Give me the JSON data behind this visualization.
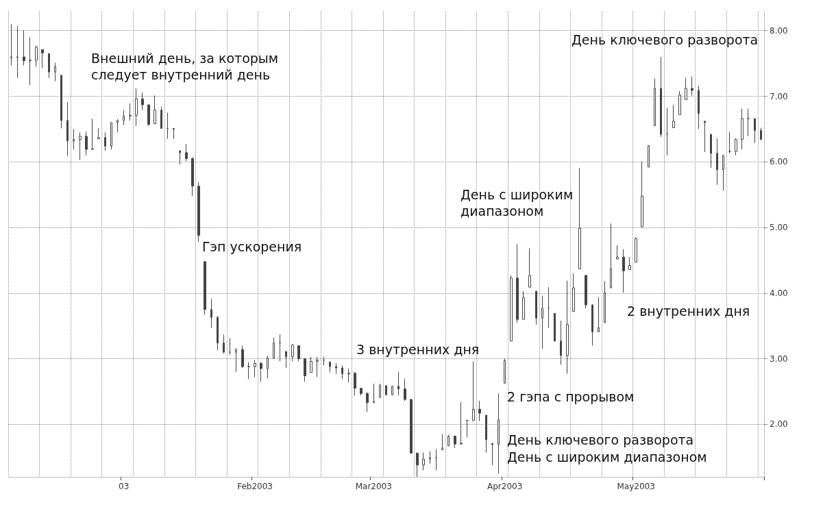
{
  "chart_data": {
    "type": "candlestick",
    "color": "#444444",
    "categories": [
      null,
      null,
      null,
      null,
      null,
      null,
      null,
      null,
      null,
      null,
      null,
      null,
      null,
      null,
      null,
      null,
      null,
      null,
      "03",
      null,
      null,
      null,
      null,
      null,
      null,
      null,
      null,
      null,
      null,
      null,
      null,
      null,
      null,
      null,
      null,
      null,
      null,
      null,
      null,
      "Feb2003",
      null,
      null,
      null,
      null,
      null,
      null,
      null,
      null,
      null,
      null,
      null,
      null,
      null,
      null,
      null,
      null,
      null,
      null,
      "Mar2003",
      null,
      null,
      null,
      null,
      null,
      null,
      null,
      null,
      null,
      null,
      null,
      null,
      null,
      null,
      null,
      null,
      null,
      null,
      null,
      null,
      "Apr2003",
      null,
      null,
      null,
      null,
      null,
      null,
      null,
      null,
      null,
      null,
      null,
      null,
      null,
      null,
      null,
      null,
      null,
      null,
      null,
      null,
      "May2003",
      null,
      null,
      null,
      null,
      null,
      null,
      null,
      null,
      null,
      null,
      null,
      null,
      null,
      null,
      null,
      null,
      null,
      null,
      null,
      null
    ],
    "ohlc": [
      [
        7.6,
        8.1,
        7.47,
        7.59
      ],
      [
        7.59,
        8.07,
        7.28,
        7.6
      ],
      [
        7.6,
        8.01,
        7.47,
        7.54
      ],
      [
        7.54,
        7.9,
        7.17,
        7.55
      ],
      [
        7.55,
        7.77,
        7.45,
        7.75
      ],
      [
        7.71,
        7.71,
        7.43,
        7.66
      ],
      [
        7.65,
        7.65,
        7.28,
        7.37
      ],
      [
        7.37,
        7.51,
        7.23,
        7.45
      ],
      [
        7.32,
        7.32,
        6.51,
        6.63
      ],
      [
        6.63,
        6.91,
        6.09,
        6.32
      ],
      [
        6.32,
        6.5,
        6.19,
        6.34
      ],
      [
        6.34,
        6.45,
        6.03,
        6.39
      ],
      [
        6.39,
        6.46,
        6.1,
        6.19
      ],
      [
        6.19,
        6.66,
        6.19,
        6.2
      ],
      [
        6.35,
        6.51,
        6.35,
        6.37
      ],
      [
        6.37,
        6.45,
        6.17,
        6.24
      ],
      [
        6.24,
        6.6,
        6.19,
        6.6
      ],
      [
        6.6,
        6.65,
        6.45,
        6.63
      ],
      [
        6.63,
        6.79,
        6.56,
        6.7
      ],
      [
        6.7,
        6.89,
        6.63,
        6.71
      ],
      [
        6.71,
        7.12,
        6.55,
        6.96
      ],
      [
        6.96,
        7.06,
        6.79,
        6.87
      ],
      [
        6.87,
        6.87,
        6.55,
        6.57
      ],
      [
        6.58,
        7.01,
        6.58,
        6.79
      ],
      [
        6.79,
        6.84,
        6.51,
        6.51
      ],
      [
        6.51,
        6.75,
        6.35,
        6.51
      ],
      [
        6.51,
        6.51,
        6.35,
        6.5
      ],
      [
        6.17,
        6.17,
        5.96,
        6.14
      ],
      [
        6.14,
        6.27,
        6.01,
        6.05
      ],
      [
        6.05,
        6.07,
        5.48,
        5.63
      ],
      [
        5.63,
        5.69,
        4.78,
        4.88
      ],
      [
        4.48,
        4.48,
        3.67,
        3.75
      ],
      [
        3.75,
        3.91,
        3.47,
        3.63
      ],
      [
        3.63,
        3.65,
        3.13,
        3.24
      ],
      [
        3.24,
        3.37,
        3.08,
        3.1
      ],
      [
        3.1,
        3.31,
        3.06,
        3.1
      ],
      [
        3.1,
        3.16,
        2.8,
        3.14
      ],
      [
        3.14,
        3.2,
        2.86,
        2.88
      ],
      [
        2.88,
        2.95,
        2.69,
        2.88
      ],
      [
        2.88,
        2.98,
        2.72,
        2.93
      ],
      [
        2.93,
        2.95,
        2.65,
        2.85
      ],
      [
        2.85,
        3.05,
        2.7,
        3.01
      ],
      [
        3.01,
        3.32,
        3.0,
        3.24
      ],
      [
        3.24,
        3.37,
        2.96,
        3.24
      ],
      [
        3.11,
        3.11,
        2.86,
        3.03
      ],
      [
        3.03,
        3.22,
        2.96,
        3.21
      ],
      [
        3.2,
        3.2,
        2.96,
        3.0
      ],
      [
        3.0,
        3.01,
        2.65,
        2.74
      ],
      [
        2.79,
        3.03,
        2.79,
        2.96
      ],
      [
        2.96,
        3.03,
        2.72,
        2.98
      ],
      [
        2.98,
        3.03,
        2.9,
        2.98
      ],
      [
        2.95,
        2.95,
        2.79,
        2.88
      ],
      [
        2.88,
        2.93,
        2.77,
        2.86
      ],
      [
        2.86,
        2.9,
        2.69,
        2.77
      ],
      [
        2.77,
        2.85,
        2.64,
        2.78
      ],
      [
        2.78,
        2.8,
        2.44,
        2.55
      ],
      [
        2.55,
        2.55,
        2.44,
        2.47
      ],
      [
        2.47,
        2.49,
        2.19,
        2.33
      ],
      [
        2.33,
        2.62,
        2.33,
        2.35
      ],
      [
        2.41,
        2.62,
        2.41,
        2.59
      ],
      [
        2.59,
        2.59,
        2.44,
        2.45
      ],
      [
        2.45,
        2.59,
        2.44,
        2.58
      ],
      [
        2.58,
        2.8,
        2.44,
        2.54
      ],
      [
        2.54,
        2.69,
        2.36,
        2.38
      ],
      [
        2.38,
        2.38,
        1.56,
        1.56
      ],
      [
        1.56,
        1.57,
        1.2,
        1.38
      ],
      [
        1.38,
        1.57,
        1.3,
        1.47
      ],
      [
        1.47,
        1.59,
        1.4,
        1.49
      ],
      [
        1.49,
        1.62,
        1.3,
        1.49
      ],
      [
        1.61,
        1.85,
        1.61,
        1.64
      ],
      [
        1.67,
        1.84,
        1.67,
        1.82
      ],
      [
        1.82,
        1.82,
        1.64,
        1.7
      ],
      [
        1.71,
        2.34,
        1.7,
        1.7
      ],
      [
        2.06,
        2.07,
        1.8,
        2.06
      ],
      [
        2.06,
        2.96,
        2.05,
        2.23
      ],
      [
        2.23,
        2.36,
        2.05,
        2.17
      ],
      [
        2.14,
        2.14,
        1.57,
        1.77
      ],
      [
        1.71,
        1.71,
        1.38,
        1.69
      ],
      [
        1.69,
        2.47,
        1.25,
        2.07
      ],
      [
        2.63,
        3.0,
        2.62,
        2.97
      ],
      [
        3.27,
        4.27,
        3.27,
        4.23
      ],
      [
        4.23,
        4.75,
        3.55,
        3.6
      ],
      [
        3.6,
        4.03,
        3.6,
        3.93
      ],
      [
        4.09,
        4.68,
        4.09,
        4.27
      ],
      [
        4.03,
        4.03,
        3.52,
        3.62
      ],
      [
        3.62,
        3.96,
        3.15,
        3.77
      ],
      [
        3.77,
        4.09,
        3.47,
        3.77
      ],
      [
        3.69,
        3.69,
        3.26,
        3.27
      ],
      [
        3.27,
        3.58,
        2.91,
        3.05
      ],
      [
        3.05,
        4.19,
        2.77,
        3.52
      ],
      [
        3.72,
        4.3,
        3.72,
        4.08
      ],
      [
        4.37,
        5.91,
        4.37,
        4.99
      ],
      [
        4.27,
        4.27,
        3.77,
        3.82
      ],
      [
        3.82,
        3.83,
        3.2,
        3.41
      ],
      [
        3.41,
        3.94,
        3.41,
        3.47
      ],
      [
        3.55,
        4.18,
        3.55,
        4.01
      ],
      [
        4.08,
        5.06,
        4.08,
        4.37
      ],
      [
        4.52,
        4.73,
        4.52,
        4.55
      ],
      [
        4.55,
        4.67,
        4.01,
        4.34
      ],
      [
        4.36,
        4.55,
        4.36,
        4.42
      ],
      [
        4.47,
        4.85,
        4.47,
        4.83
      ],
      [
        5.01,
        6.01,
        5.01,
        5.48
      ],
      [
        5.92,
        6.25,
        5.92,
        6.25
      ],
      [
        6.55,
        7.27,
        6.55,
        7.12
      ],
      [
        7.12,
        7.6,
        6.38,
        6.42
      ],
      [
        6.42,
        6.82,
        6.1,
        6.42
      ],
      [
        6.52,
        6.87,
        6.52,
        6.62
      ],
      [
        6.72,
        7.08,
        6.72,
        7.02
      ],
      [
        6.95,
        7.28,
        6.95,
        7.12
      ],
      [
        7.12,
        7.3,
        7.01,
        7.09
      ],
      [
        7.09,
        7.16,
        6.5,
        6.74
      ],
      [
        6.62,
        6.62,
        6.15,
        6.6
      ],
      [
        6.42,
        6.42,
        5.91,
        6.13
      ],
      [
        6.13,
        6.36,
        5.65,
        5.88
      ],
      [
        5.88,
        6.1,
        5.56,
        6.1
      ],
      [
        6.16,
        6.46,
        6.13,
        6.16
      ],
      [
        6.16,
        6.36,
        6.1,
        6.34
      ],
      [
        6.34,
        6.81,
        6.19,
        6.66
      ],
      [
        6.66,
        6.81,
        6.39,
        6.66
      ],
      [
        6.66,
        6.66,
        6.29,
        6.48
      ],
      [
        6.48,
        6.52,
        6.34,
        6.34
      ]
    ],
    "ylim": [
      1.2,
      8.3
    ],
    "yticks": [
      {
        "value": 2,
        "label": "2.00"
      },
      {
        "value": 3,
        "label": "3.00"
      },
      {
        "value": 4,
        "label": "4.00"
      },
      {
        "value": 5,
        "label": "5.00"
      },
      {
        "value": 6,
        "label": "6.00"
      },
      {
        "value": 7,
        "label": "7.00"
      },
      {
        "value": 8,
        "label": "8.00"
      }
    ],
    "grid": true,
    "annotations": [
      "День ключевого разворота",
      "Внешний день, за которым\nследует внутренний день",
      "Гэп ускорения",
      "День с широким\nдиапазоном",
      "2 внутренних дня",
      "3 внутренних дня",
      "2 гэпа с прорывом",
      "День ключевого разворота",
      "День с широким диапазоном"
    ]
  }
}
